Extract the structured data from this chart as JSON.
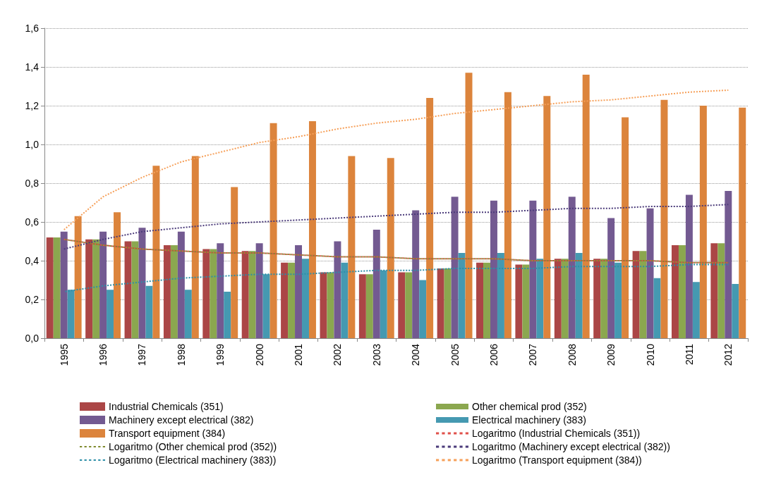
{
  "chart_data": {
    "type": "bar",
    "categories": [
      "1995",
      "1996",
      "1997",
      "1998",
      "1999",
      "2000",
      "2001",
      "2002",
      "2003",
      "2004",
      "2005",
      "2006",
      "2007",
      "2008",
      "2009",
      "2010",
      "2011",
      "2012"
    ],
    "ylim": [
      0,
      1.6
    ],
    "yticks": [
      {
        "value": 0,
        "label": "0,0"
      },
      {
        "value": 0.2,
        "label": "0,2"
      },
      {
        "value": 0.4,
        "label": "0,4"
      },
      {
        "value": 0.6,
        "label": "0,6"
      },
      {
        "value": 0.8,
        "label": "0,8"
      },
      {
        "value": 1,
        "label": "1,0"
      },
      {
        "value": 1.2,
        "label": "1,2"
      },
      {
        "value": 1.4,
        "label": "1,4"
      },
      {
        "value": 1.6,
        "label": "1,6"
      }
    ],
    "grid": "y",
    "legend": "bottom",
    "series": [
      {
        "name": "Industrial Chemicals (351)",
        "color": "#ab4646",
        "values": [
          0.52,
          0.51,
          0.5,
          0.48,
          0.46,
          0.45,
          0.39,
          0.34,
          0.33,
          0.34,
          0.36,
          0.39,
          0.38,
          0.41,
          0.41,
          0.45,
          0.48,
          0.49
        ]
      },
      {
        "name": "Other chemical prod (352)",
        "color": "#8ba74f",
        "values": [
          0.52,
          0.51,
          0.5,
          0.48,
          0.46,
          0.45,
          0.39,
          0.34,
          0.33,
          0.34,
          0.36,
          0.39,
          0.38,
          0.41,
          0.41,
          0.45,
          0.48,
          0.49
        ]
      },
      {
        "name": "Machinery except electrical (382)",
        "color": "#735a91",
        "values": [
          0.55,
          0.55,
          0.57,
          0.55,
          0.49,
          0.49,
          0.48,
          0.5,
          0.56,
          0.66,
          0.73,
          0.71,
          0.71,
          0.73,
          0.62,
          0.67,
          0.74,
          0.76
        ]
      },
      {
        "name": "Electrical machinery (383)",
        "color": "#4599b1",
        "values": [
          0.25,
          0.25,
          0.27,
          0.25,
          0.24,
          0.33,
          0.41,
          0.39,
          0.35,
          0.3,
          0.44,
          0.44,
          0.41,
          0.44,
          0.39,
          0.31,
          0.29,
          0.28
        ]
      },
      {
        "name": "Transport equipment (384)",
        "color": "#dc843c",
        "values": [
          0.63,
          0.65,
          0.89,
          0.94,
          0.78,
          1.11,
          1.12,
          0.94,
          0.93,
          1.24,
          1.37,
          1.27,
          1.25,
          1.36,
          1.14,
          1.23,
          1.2,
          1.19
        ]
      },
      {
        "name": "Logaritmo (Industrial Chemicals (351))",
        "type": "line",
        "line_style": "dotted",
        "marker": "none",
        "color": "#e0504a",
        "values": [
          0.51,
          0.48,
          0.46,
          0.45,
          0.44,
          0.44,
          0.43,
          0.42,
          0.42,
          0.41,
          0.41,
          0.41,
          0.4,
          0.4,
          0.4,
          0.4,
          0.39,
          0.39
        ]
      },
      {
        "name": "Logaritmo (Other chemical prod (352))",
        "type": "line",
        "line_style": "dotted",
        "marker": "none",
        "color": "#7f8a2e",
        "values": [
          0.51,
          0.48,
          0.46,
          0.45,
          0.44,
          0.44,
          0.43,
          0.42,
          0.42,
          0.41,
          0.41,
          0.41,
          0.4,
          0.4,
          0.4,
          0.4,
          0.39,
          0.39
        ]
      },
      {
        "name": "Logaritmo (Machinery except electrical (382))",
        "type": "line",
        "line_style": "dotted",
        "marker": "none",
        "color": "#4b3b7a",
        "values": [
          0.46,
          0.51,
          0.55,
          0.57,
          0.59,
          0.6,
          0.61,
          0.62,
          0.63,
          0.64,
          0.65,
          0.65,
          0.66,
          0.67,
          0.67,
          0.68,
          0.68,
          0.69
        ]
      },
      {
        "name": "Logaritmo (Electrical machinery (383))",
        "type": "line",
        "line_style": "dotted",
        "marker": "none",
        "color": "#2d8fa8",
        "values": [
          0.24,
          0.27,
          0.29,
          0.31,
          0.32,
          0.33,
          0.33,
          0.34,
          0.35,
          0.35,
          0.36,
          0.36,
          0.36,
          0.37,
          0.37,
          0.37,
          0.38,
          0.38
        ]
      },
      {
        "name": "Logaritmo (Transport equipment (384))",
        "type": "line",
        "line_style": "dotted",
        "marker": "none",
        "color": "#f6a05a",
        "values": [
          0.56,
          0.73,
          0.83,
          0.91,
          0.96,
          1.01,
          1.04,
          1.08,
          1.11,
          1.13,
          1.16,
          1.18,
          1.2,
          1.22,
          1.23,
          1.25,
          1.27,
          1.28
        ]
      }
    ]
  }
}
